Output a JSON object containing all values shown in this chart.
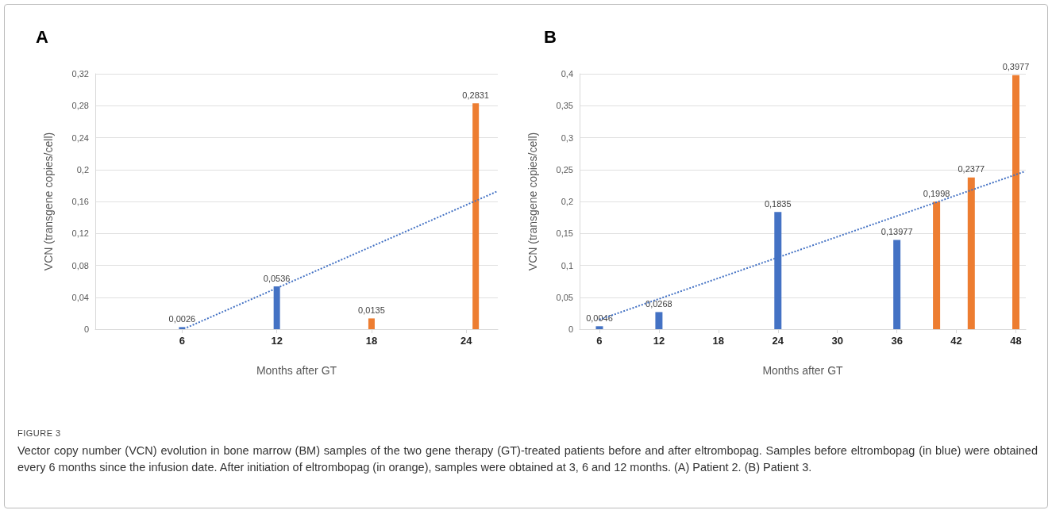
{
  "chart_data": [
    {
      "type": "bar",
      "title": "A",
      "xlabel": "Months after GT",
      "ylabel": "VCN (transgene copies/cell)",
      "xlim": [
        0.5,
        26
      ],
      "xticks": [
        6,
        12,
        18,
        24
      ],
      "ylim": [
        0,
        0.32
      ],
      "yticks": [
        0,
        {
          "value": 0.04,
          "label": "0,04"
        },
        {
          "value": 0.08,
          "label": "0,08"
        },
        {
          "value": 0.12,
          "label": "0,12"
        },
        {
          "value": 0.16,
          "label": "0,16"
        },
        {
          "value": 0.2,
          "label": "0,2"
        },
        {
          "value": 0.24,
          "label": "0,24"
        },
        {
          "value": 0.28,
          "label": "0,28"
        },
        {
          "value": 0.32,
          "label": "0,32"
        }
      ],
      "grid": "y",
      "series": [
        {
          "color": "#4472c4",
          "x": [
            6,
            12
          ],
          "values": [
            0.0026,
            0.0536
          ],
          "value_labels": [
            "0,0026",
            "0,0536"
          ]
        },
        {
          "color": "#ed7d31",
          "x": [
            18,
            24.6
          ],
          "values": [
            0.0135,
            0.2831
          ],
          "value_labels": [
            "0,0135",
            "0,2831"
          ]
        },
        {
          "type": "line",
          "color": "#4472c4",
          "line_style": "dotted",
          "marker": "none",
          "x": [
            6.3,
            26
          ],
          "values": [
            0.002,
            0.173
          ]
        }
      ],
      "annotations": [
        "FIGURE 3",
        "Vector copy number (VCN) evolution in bone marrow (BM) samples of the two gene therapy (GT)-treated patients before and after eltrombopag. Samples before eltrombopag (in blue) were obtained every 6 months since the infusion date. After initiation of eltrombopag (in orange), samples were obtained at 3, 6 and 12 months. (A) Patient 2. (B) Patient 3."
      ]
    },
    {
      "type": "bar",
      "title": "B",
      "xlabel": "Months after GT",
      "ylabel": "VCN (transgene copies/cell)",
      "xlim": [
        4,
        49
      ],
      "xticks": [
        6,
        12,
        18,
        24,
        30,
        36,
        42,
        48
      ],
      "ylim": [
        0,
        0.4
      ],
      "yticks": [
        0,
        {
          "value": 0.05,
          "label": "0,05"
        },
        {
          "value": 0.1,
          "label": "0,1"
        },
        {
          "value": 0.15,
          "label": "0,15"
        },
        {
          "value": 0.2,
          "label": "0,2"
        },
        {
          "value": 0.25,
          "label": "0,25"
        },
        {
          "value": 0.3,
          "label": "0,3"
        },
        {
          "value": 0.35,
          "label": "0,35"
        },
        {
          "value": 0.4,
          "label": "0,4"
        }
      ],
      "grid": "y",
      "series": [
        {
          "color": "#4472c4",
          "x": [
            6,
            12,
            24,
            36
          ],
          "values": [
            0.0046,
            0.0268,
            0.1835,
            0.13977
          ],
          "value_labels": [
            "0,0046",
            "0,0268",
            "0,1835",
            "0,13977"
          ]
        },
        {
          "color": "#ed7d31",
          "x": [
            40,
            43.5,
            48
          ],
          "values": [
            0.1998,
            0.2377,
            0.3977
          ],
          "value_labels": [
            "0,1998",
            "0,2377",
            "0,3977"
          ]
        },
        {
          "type": "line",
          "color": "#4472c4",
          "line_style": "dotted",
          "marker": "none",
          "x": [
            6,
            48.9
          ],
          "values": [
            0.015,
            0.247
          ]
        }
      ]
    }
  ]
}
